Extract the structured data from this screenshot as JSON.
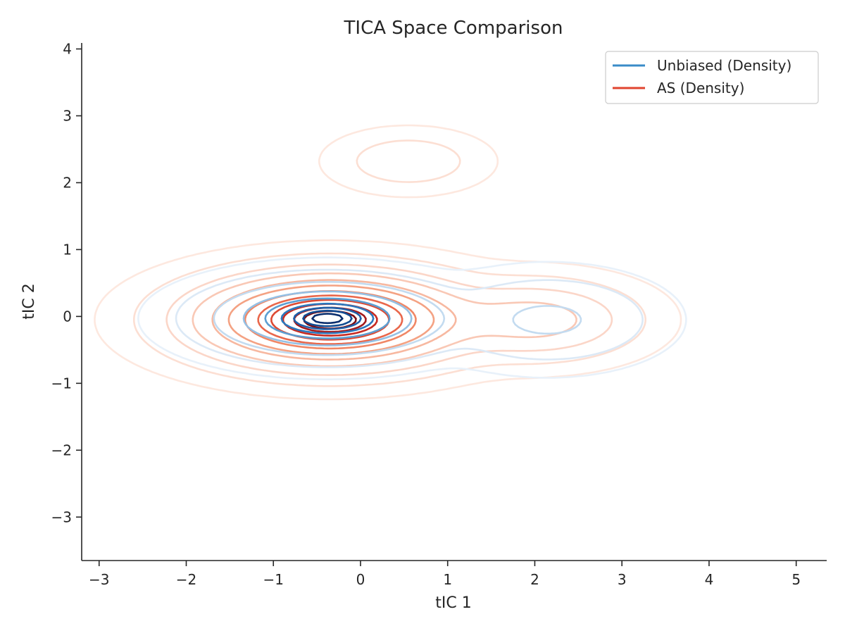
{
  "chart_data": {
    "type": "contour",
    "title": "TICA Space Comparison",
    "xlabel": "tIC 1",
    "ylabel": "tIC 2",
    "xlim": [
      -3.2,
      5.35
    ],
    "ylim": [
      -3.65,
      4.1
    ],
    "xticks": [
      -3,
      -2,
      -1,
      0,
      1,
      2,
      3,
      4,
      5
    ],
    "yticks": [
      -3,
      -2,
      -1,
      0,
      1,
      2,
      3,
      4
    ],
    "grid": false,
    "legend_position": "top-right",
    "series": [
      {
        "name": "Unbiased (Density)",
        "color": "#3a8cc8",
        "modes": [
          {
            "x": -0.38,
            "y": -0.03,
            "sx": 0.62,
            "sy": 0.26,
            "w": 1.0
          },
          {
            "x": 2.15,
            "y": -0.05,
            "sx": 0.55,
            "sy": 0.3,
            "w": 0.14
          }
        ],
        "levels": [
          {
            "scale": 0.28,
            "color": "#0b2f6e"
          },
          {
            "scale": 0.45,
            "color": "#124c92"
          },
          {
            "scale": 0.62,
            "color": "#2060a8"
          },
          {
            "scale": 0.85,
            "color": "#2c78bd"
          },
          {
            "scale": 1.15,
            "color": "#5d9ed1"
          },
          {
            "scale": 1.55,
            "color": "#95c0e4"
          },
          {
            "scale": 2.1,
            "color": "#c3dbf0"
          },
          {
            "scale": 2.8,
            "color": "#dce9f6"
          },
          {
            "scale": 3.5,
            "color": "#e8f1fa"
          }
        ]
      },
      {
        "name": "AS (Density)",
        "color": "#e0442f",
        "modes": [
          {
            "x": -0.35,
            "y": -0.05,
            "sx": 0.75,
            "sy": 0.33,
            "w": 1.0
          },
          {
            "x": 2.0,
            "y": -0.05,
            "sx": 0.55,
            "sy": 0.28,
            "w": 0.16
          },
          {
            "x": 0.55,
            "y": 2.32,
            "sx": 0.42,
            "sy": 0.22,
            "w": 0.03
          }
        ],
        "levels": [
          {
            "scale": 0.4,
            "color": "#7a0d14"
          },
          {
            "scale": 0.55,
            "color": "#a31a1c"
          },
          {
            "scale": 0.72,
            "color": "#c72b22"
          },
          {
            "scale": 0.9,
            "color": "#dd4a33"
          },
          {
            "scale": 1.1,
            "color": "#e9674b"
          },
          {
            "scale": 1.3,
            "color": "#f08766"
          },
          {
            "scale": 1.55,
            "color": "#f4a283"
          },
          {
            "scale": 1.8,
            "color": "#f7b8a0"
          },
          {
            "scale": 2.1,
            "color": "#f9c8b5"
          },
          {
            "scale": 2.5,
            "color": "#fbd6c8"
          },
          {
            "scale": 3.0,
            "color": "#fcdfd3"
          },
          {
            "scale": 3.6,
            "color": "#fde8df"
          }
        ]
      }
    ]
  }
}
